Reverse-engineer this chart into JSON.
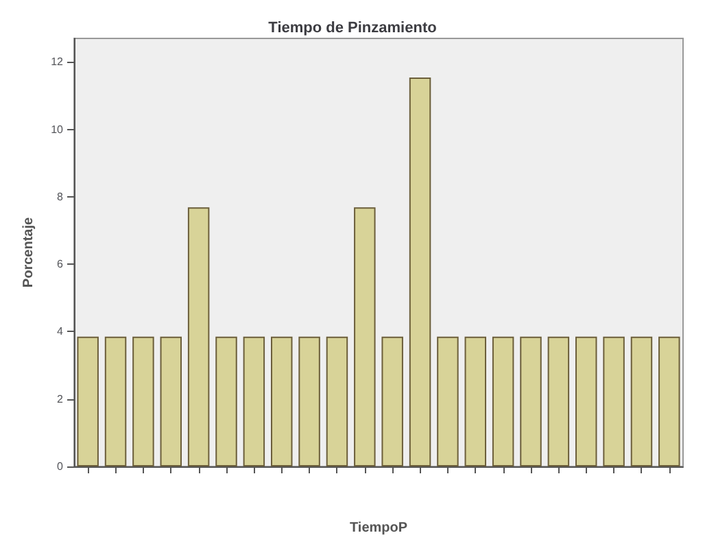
{
  "chart_data": {
    "type": "bar",
    "title": "Tiempo de Pinzamiento",
    "xlabel": "TiempoP",
    "ylabel": "Porcentaje",
    "categories": [
      null,
      null,
      null,
      null,
      null,
      null,
      null,
      null,
      null,
      null,
      null,
      null,
      null,
      null,
      null,
      null,
      null,
      null,
      null,
      null,
      null,
      null
    ],
    "values": [
      3.85,
      3.85,
      3.85,
      3.85,
      7.69,
      3.85,
      3.85,
      3.85,
      3.85,
      3.85,
      7.69,
      3.85,
      11.54,
      3.85,
      3.85,
      3.85,
      3.85,
      3.85,
      3.85,
      3.85,
      3.85,
      3.85
    ],
    "color": "#d8d398",
    "ylim": [
      0,
      12.7
    ],
    "yticks": [
      0,
      2,
      4,
      6,
      8,
      10,
      12
    ],
    "grid": false
  }
}
